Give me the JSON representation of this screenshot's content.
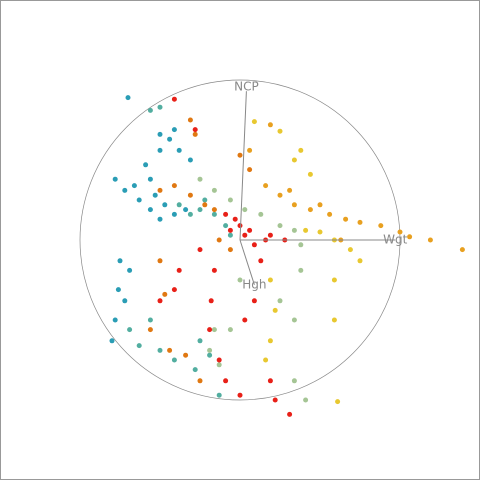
{
  "chart_data": {
    "type": "scatter",
    "xlim": [
      -1.5,
      1.5
    ],
    "ylim": [
      -1.5,
      1.5
    ],
    "arrows": [
      {
        "label": "NCP",
        "x": 0.04,
        "y": 0.93
      },
      {
        "label": "Wgt",
        "x": 0.97,
        "y": 0
      },
      {
        "label": "Hgh",
        "x": 0.09,
        "y": -0.28
      }
    ],
    "series": [
      {
        "color": "#2a9db5",
        "x": [
          -0.78,
          -0.72,
          -0.63,
          -0.56,
          -0.5,
          -0.59,
          -0.5,
          -0.44,
          -0.38,
          -0.31,
          -0.75,
          -0.76,
          -0.78,
          -0.8,
          -0.72,
          -0.69,
          -0.53,
          -0.47,
          -0.41,
          -0.34,
          -0.66,
          -0.56,
          -0.7,
          -0.5,
          -0.41
        ],
        "y": [
          0.38,
          0.31,
          0.25,
          0.19,
          0.13,
          0.47,
          0.56,
          0.63,
          0.56,
          0.5,
          -0.13,
          -0.31,
          -0.5,
          -0.63,
          -0.38,
          -0.19,
          0.28,
          0.22,
          0.16,
          0.19,
          0.34,
          0.38,
          0.89,
          0.66,
          0.69
        ]
      },
      {
        "color": "#52aea0",
        "x": [
          -0.56,
          -0.5,
          -0.38,
          -0.25,
          -0.16,
          -0.63,
          -0.5,
          -0.41,
          -0.28,
          -0.13,
          -0.69,
          -0.56,
          -0.25,
          -0.19,
          -0.31,
          -0.22,
          -0.09,
          -0.06
        ],
        "y": [
          0.81,
          0.83,
          0.22,
          0.19,
          0.16,
          -0.66,
          -0.69,
          -0.75,
          -0.81,
          -0.97,
          -0.56,
          -0.5,
          -0.63,
          -0.72,
          0.16,
          0.25,
          0.09,
          0.03
        ]
      },
      {
        "color": "#e07812",
        "x": [
          -0.31,
          -0.28,
          -0.5,
          -0.41,
          -0.31,
          -0.22,
          -0.16,
          0,
          0.06,
          -0.44,
          -0.34,
          -0.25,
          -0.5,
          -0.47,
          -0.56,
          -0.13,
          -0.06
        ],
        "y": [
          0.75,
          0.66,
          0.31,
          0.34,
          0.28,
          0.22,
          0.19,
          0.53,
          0.44,
          -0.69,
          -0.72,
          -0.88,
          -0.13,
          -0.34,
          -0.56,
          0,
          -0.06
        ]
      },
      {
        "color": "#e8a020",
        "x": [
          0.16,
          0.25,
          0.34,
          0.44,
          0.56,
          0.66,
          0.75,
          0.88,
          1.0,
          1.06,
          1.19,
          1.39,
          0.31,
          0.5,
          0.06,
          0.19,
          0.63
        ],
        "y": [
          0.34,
          0.28,
          0.22,
          0.19,
          0.16,
          0.13,
          0.11,
          0.09,
          0.05,
          0.02,
          0,
          -0.06,
          0.31,
          0.22,
          0.56,
          0.72,
          0
        ]
      },
      {
        "color": "#e8c830",
        "x": [
          0.09,
          0.25,
          0.34,
          0.41,
          0.5,
          0.59,
          0.69,
          0.75,
          0.59,
          0.59,
          0.19,
          0.22,
          0.19,
          0.16,
          0.38,
          0.44,
          0.61
        ],
        "y": [
          0.74,
          0.68,
          0.5,
          0.06,
          0.05,
          0,
          -0.06,
          -0.13,
          -0.25,
          -0.5,
          -0.25,
          -0.44,
          -0.63,
          -0.75,
          0.56,
          0.41,
          -1.01
        ]
      },
      {
        "color": "#a5c595",
        "x": [
          -0.25,
          -0.16,
          -0.06,
          0.03,
          0.13,
          0.25,
          0.34,
          0.38,
          -0.16,
          -0.19,
          -0.13,
          -0.06,
          0.25,
          0.34,
          0.38,
          0.34,
          0.41,
          0
        ],
        "y": [
          0.38,
          0.31,
          0.25,
          0.19,
          0.16,
          0.09,
          0.06,
          -0.03,
          -0.56,
          -0.69,
          -0.78,
          -0.56,
          -0.38,
          -0.5,
          -0.19,
          -0.88,
          -1.0,
          -0.25
        ]
      },
      {
        "color": "#e82018",
        "x": [
          -0.03,
          0,
          -0.06,
          0.03,
          -0.09,
          0.06,
          0.09,
          0.16,
          -0.16,
          -0.18,
          -0.19,
          -0.13,
          -0.09,
          0,
          0.19,
          0.22,
          0.31,
          -0.38,
          -0.41,
          -0.5,
          -0.25,
          0.13,
          0.09,
          0.03,
          -0.41,
          -0.28,
          0.19,
          0.28
        ],
        "y": [
          0.13,
          0.09,
          0.06,
          0.03,
          0.16,
          0.06,
          -0.03,
          0,
          -0.19,
          -0.38,
          -0.56,
          -0.75,
          -0.88,
          -0.97,
          -0.88,
          -1.0,
          -1.09,
          -0.19,
          -0.31,
          -0.38,
          -0.06,
          -0.13,
          -0.38,
          -0.5,
          0.88,
          0.69,
          0.03,
          0
        ]
      }
    ]
  }
}
